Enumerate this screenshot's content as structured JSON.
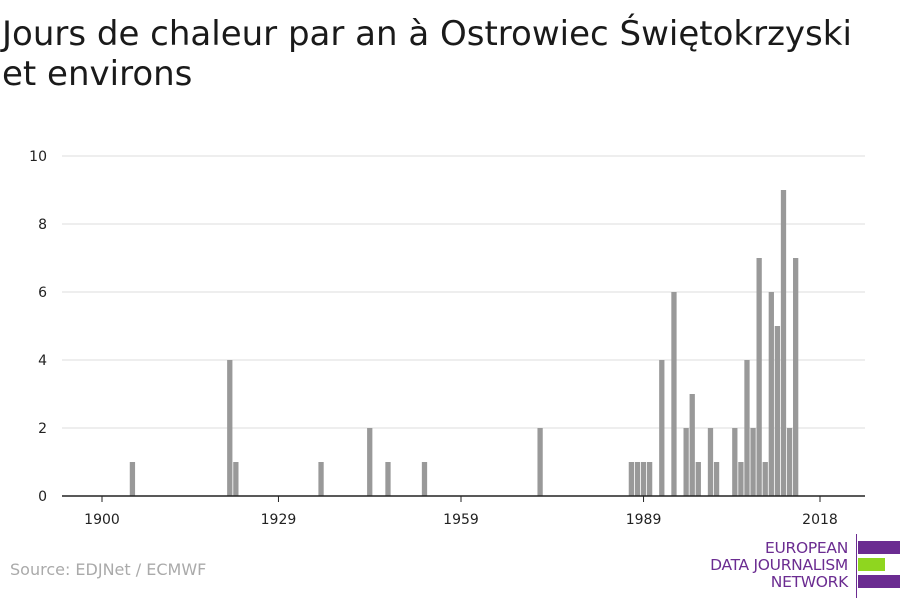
{
  "chart_data": {
    "type": "bar",
    "title": "Jours de chaleur par an à Ostrowiec Świętokrzyski et environs",
    "xlabel": "",
    "ylabel": "",
    "xlim": [
      1900,
      2018
    ],
    "ylim": [
      0,
      10
    ],
    "x_ticks": [
      1900,
      1929,
      1959,
      1989,
      2018
    ],
    "y_ticks": [
      0,
      2,
      4,
      6,
      8,
      10
    ],
    "grid": true,
    "bar_color": "#999999",
    "x": [
      1905,
      1921,
      1922,
      1936,
      1944,
      1947,
      1953,
      1972,
      1987,
      1988,
      1989,
      1990,
      1992,
      1994,
      1996,
      1997,
      1998,
      2000,
      2001,
      2004,
      2005,
      2006,
      2007,
      2008,
      2009,
      2010,
      2011,
      2012,
      2013,
      2014,
      2015
    ],
    "values": [
      1,
      4,
      1,
      1,
      2,
      1,
      1,
      2,
      1,
      1,
      1,
      1,
      4,
      6,
      2,
      3,
      1,
      2,
      1,
      2,
      1,
      4,
      2,
      7,
      1,
      6,
      5,
      9,
      2,
      7,
      0
    ]
  },
  "source": "Source: EDJNet / ECMWF",
  "logo": {
    "lines": [
      "EUROPEAN",
      "DATA JOURNALISM",
      "NETWORK"
    ],
    "colors": {
      "purple": "#6b2c91",
      "green": "#8fd61f"
    }
  }
}
